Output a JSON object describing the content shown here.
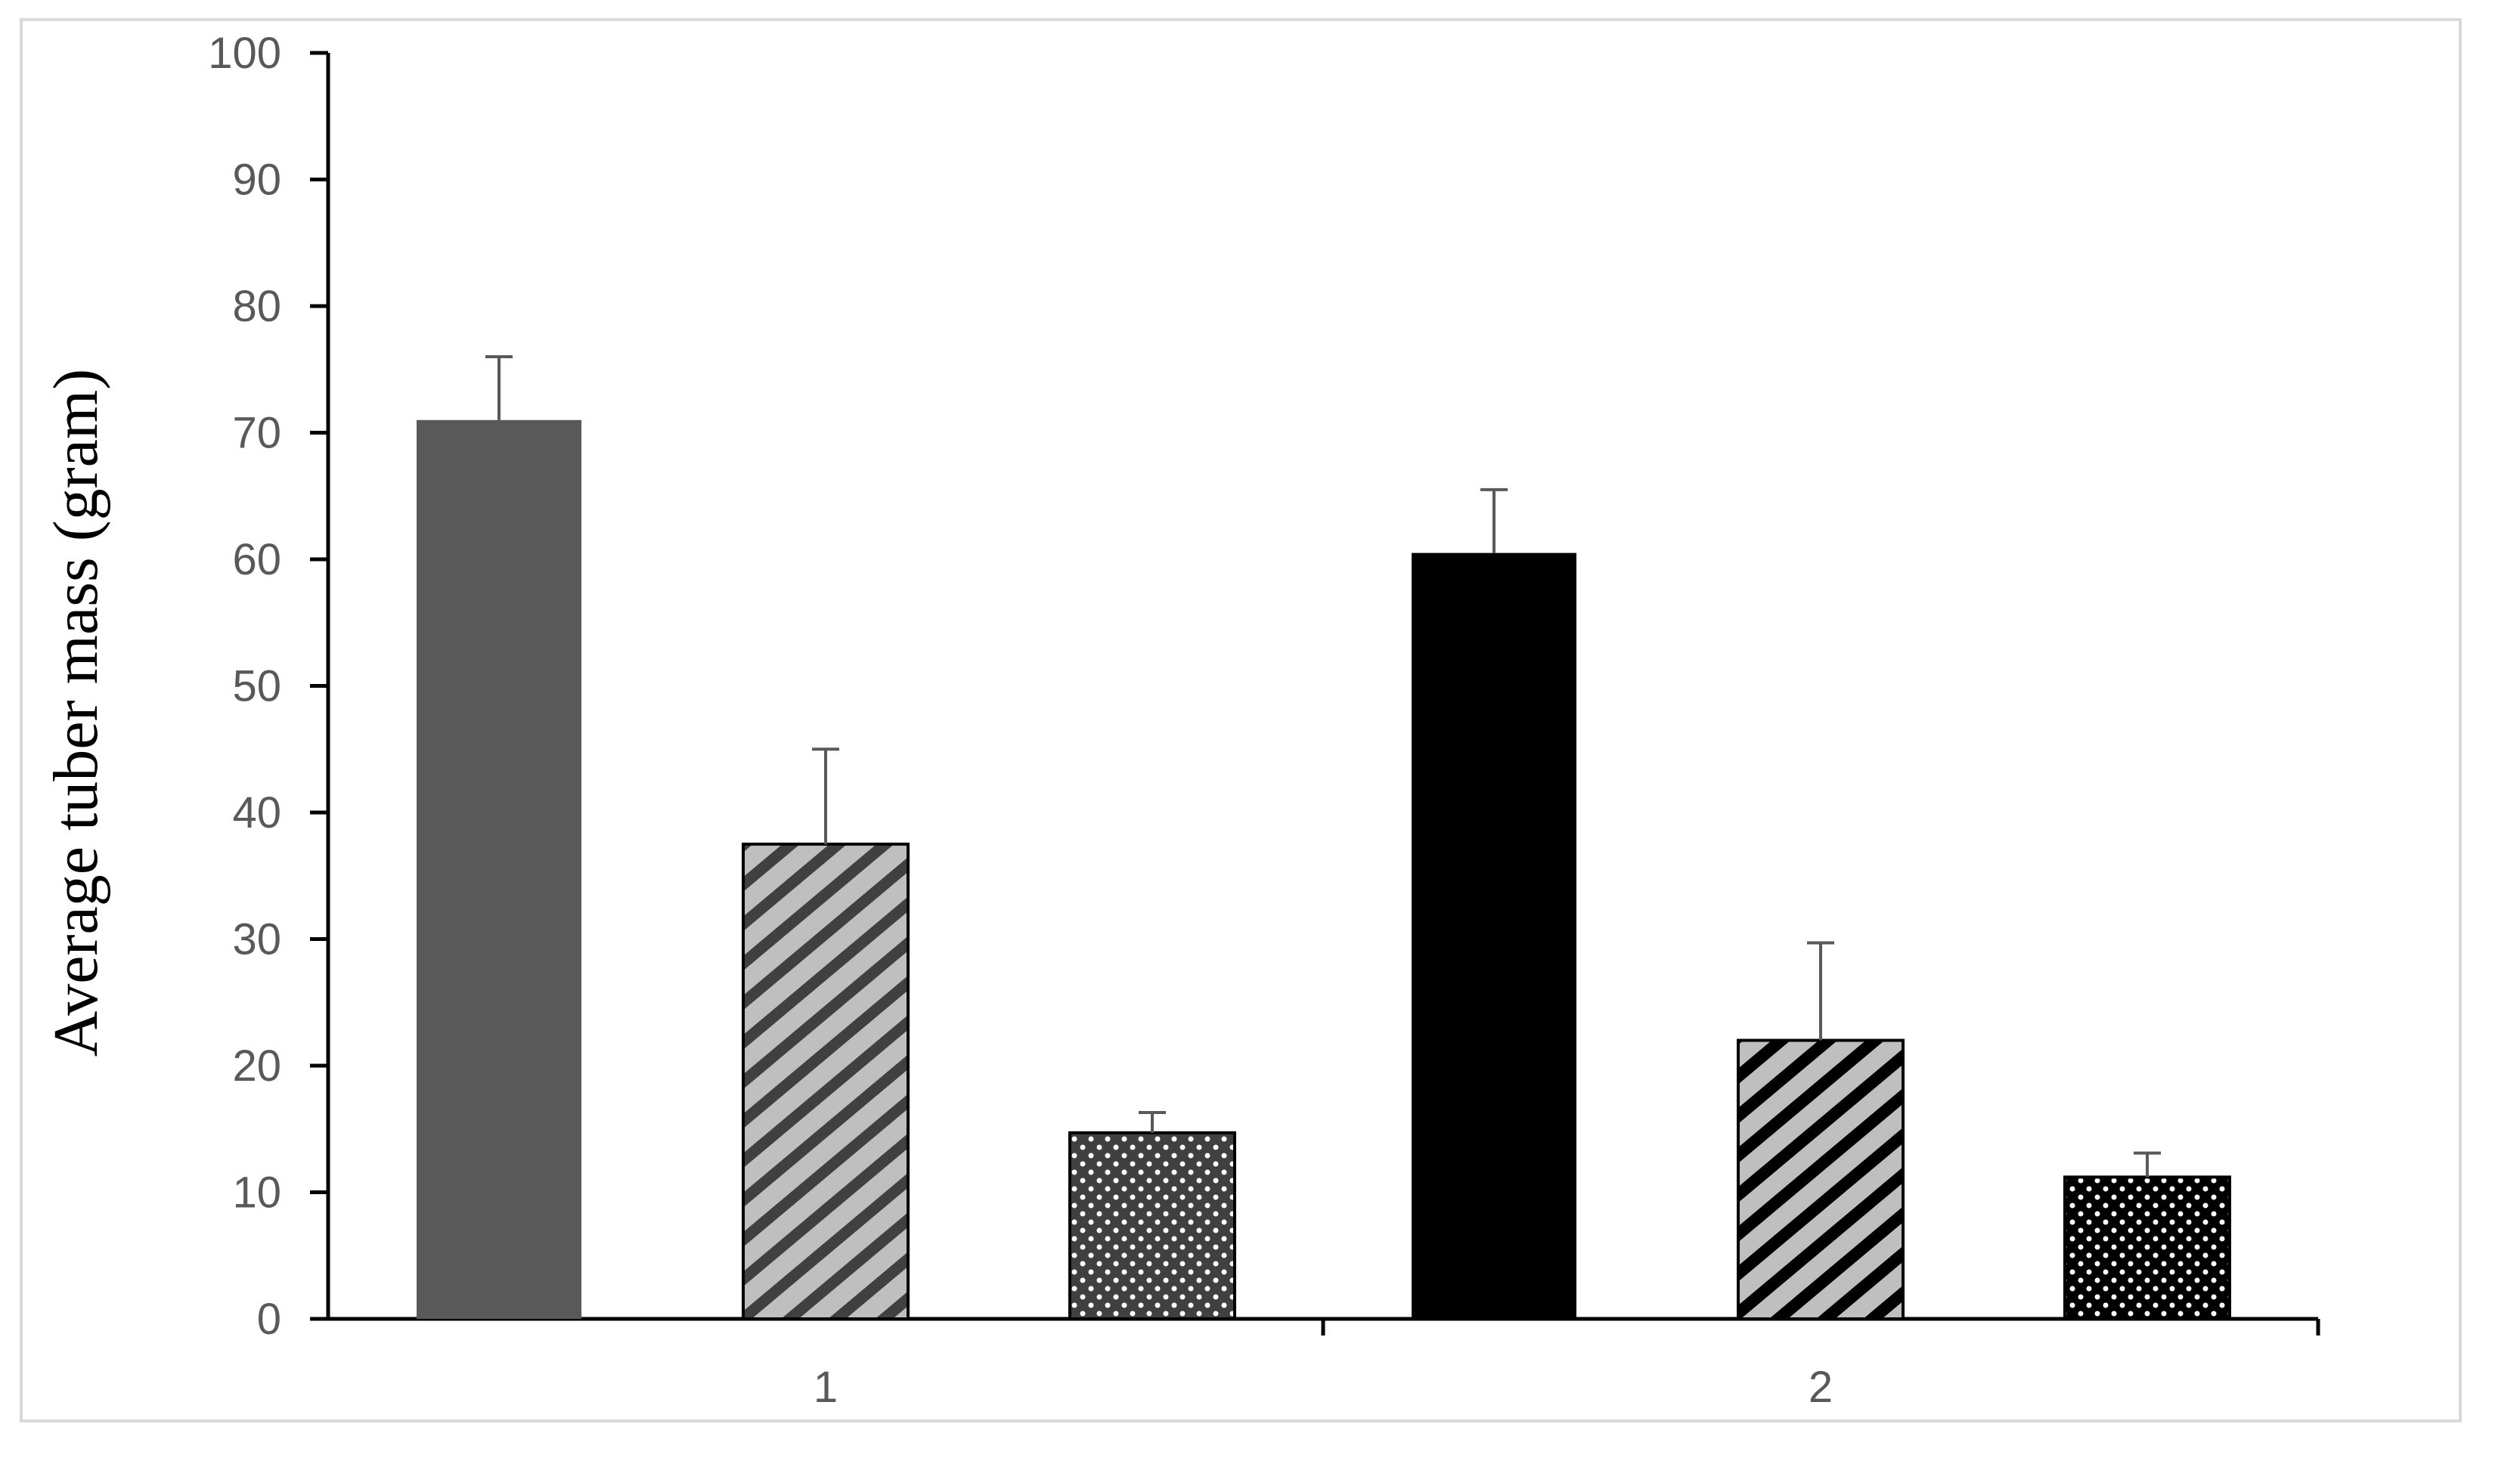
{
  "chart_data": {
    "type": "bar",
    "title": "",
    "xlabel": "",
    "ylabel": "Average tuber mass (gram)",
    "ylim": [
      0,
      100
    ],
    "yticks": [
      0,
      10,
      20,
      30,
      40,
      50,
      60,
      70,
      80,
      90,
      100
    ],
    "grid": false,
    "legend": "none",
    "categories": [
      "1",
      "2"
    ],
    "bars_per_category": 3,
    "series": [
      {
        "values": [
          71,
          60.5
        ],
        "errors": [
          5,
          5
        ],
        "fills": [
          "#595959",
          "#000000"
        ],
        "pattern": "solid"
      },
      {
        "values": [
          37.5,
          22
        ],
        "errors": [
          7.5,
          7.7
        ],
        "fills": [
          "#bfbfbf",
          "#bfbfbf"
        ],
        "stripes": [
          "#404040",
          "#000000"
        ],
        "pattern": "diagonal"
      },
      {
        "values": [
          14.7,
          11.2
        ],
        "errors": [
          1.6,
          1.9
        ],
        "fills": [
          "#404040",
          "#000000"
        ],
        "pattern": "dots"
      }
    ]
  }
}
